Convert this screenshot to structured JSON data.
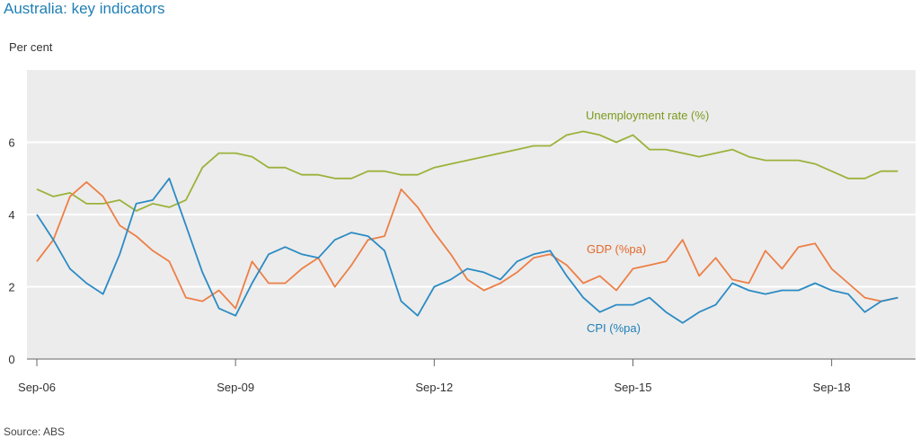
{
  "title": "Australia: key indicators",
  "source": "Source: ABS",
  "chart_data": {
    "type": "line",
    "title": "Australia: key indicators",
    "ylabel": "Per cent",
    "xlabel": "",
    "ylim": [
      0,
      8
    ],
    "yticks": [
      0,
      2,
      4,
      6
    ],
    "xtick_labels": [
      "Sep-06",
      "Sep-09",
      "Sep-12",
      "Sep-15",
      "Sep-18"
    ],
    "xtick_index": [
      0,
      12,
      24,
      36,
      48
    ],
    "grid": true,
    "x": [
      "Sep-06",
      "Dec-06",
      "Mar-07",
      "Jun-07",
      "Sep-07",
      "Dec-07",
      "Mar-08",
      "Jun-08",
      "Sep-08",
      "Dec-08",
      "Mar-09",
      "Jun-09",
      "Sep-09",
      "Dec-09",
      "Mar-10",
      "Jun-10",
      "Sep-10",
      "Dec-10",
      "Mar-11",
      "Jun-11",
      "Sep-11",
      "Dec-11",
      "Mar-12",
      "Jun-12",
      "Sep-12",
      "Dec-12",
      "Mar-13",
      "Jun-13",
      "Sep-13",
      "Dec-13",
      "Mar-14",
      "Jun-14",
      "Sep-14",
      "Dec-14",
      "Mar-15",
      "Jun-15",
      "Sep-15",
      "Dec-15",
      "Mar-16",
      "Jun-16",
      "Sep-16",
      "Dec-16",
      "Mar-17",
      "Jun-17",
      "Sep-17",
      "Dec-17",
      "Mar-18",
      "Jun-18",
      "Sep-18",
      "Dec-18",
      "Mar-19",
      "Jun-19",
      "Sep-19",
      "Dec-19"
    ],
    "series": [
      {
        "name": "Unemployment rate (%)",
        "color": "#9bb23b",
        "values": [
          4.7,
          4.5,
          4.6,
          4.3,
          4.3,
          4.4,
          4.1,
          4.3,
          4.2,
          4.4,
          5.3,
          5.7,
          5.7,
          5.6,
          5.3,
          5.3,
          5.1,
          5.1,
          5.0,
          5.0,
          5.2,
          5.2,
          5.1,
          5.1,
          5.3,
          5.4,
          5.5,
          5.6,
          5.7,
          5.8,
          5.9,
          5.9,
          6.2,
          6.3,
          6.2,
          6.0,
          6.2,
          5.8,
          5.8,
          5.7,
          5.6,
          5.7,
          5.8,
          5.6,
          5.5,
          5.5,
          5.5,
          5.4,
          5.2,
          5.0,
          5.0,
          5.2,
          5.2,
          null
        ]
      },
      {
        "name": "GDP (%pa)",
        "color": "#ed7f46",
        "values": [
          2.7,
          3.3,
          4.5,
          4.9,
          4.5,
          3.7,
          3.4,
          3.0,
          2.7,
          1.7,
          1.6,
          1.9,
          1.4,
          2.7,
          2.1,
          2.1,
          2.5,
          2.8,
          2.0,
          2.6,
          3.3,
          3.4,
          4.7,
          4.2,
          3.5,
          2.9,
          2.2,
          1.9,
          2.1,
          2.4,
          2.8,
          2.9,
          2.6,
          2.1,
          2.3,
          1.9,
          2.5,
          2.6,
          2.7,
          3.3,
          2.3,
          2.8,
          2.2,
          2.1,
          3.0,
          2.5,
          3.1,
          3.2,
          2.5,
          2.1,
          1.7,
          1.6,
          1.7,
          null
        ]
      },
      {
        "name": "CPI (%pa)",
        "color": "#2b8bc4",
        "values": [
          4.0,
          3.3,
          2.5,
          2.1,
          1.8,
          2.9,
          4.3,
          4.4,
          5.0,
          3.7,
          2.4,
          1.4,
          1.2,
          2.1,
          2.9,
          3.1,
          2.9,
          2.8,
          3.3,
          3.5,
          3.4,
          3.0,
          1.6,
          1.2,
          2.0,
          2.2,
          2.5,
          2.4,
          2.2,
          2.7,
          2.9,
          3.0,
          2.3,
          1.7,
          1.3,
          1.5,
          1.5,
          1.7,
          1.3,
          1.0,
          1.3,
          1.5,
          2.1,
          1.9,
          1.8,
          1.9,
          1.9,
          2.1,
          1.9,
          1.8,
          1.3,
          1.6,
          1.7,
          null
        ]
      }
    ],
    "annotations": [
      {
        "text": "Unemployment rate (%)",
        "series": 0
      },
      {
        "text": "GDP (%pa)",
        "series": 1
      },
      {
        "text": "CPI (%pa)",
        "series": 2
      }
    ],
    "colors": {
      "plot_bg": "#ececec",
      "grid": "#ffffff",
      "axis": "#666666",
      "title": "#1f7fb6"
    }
  }
}
